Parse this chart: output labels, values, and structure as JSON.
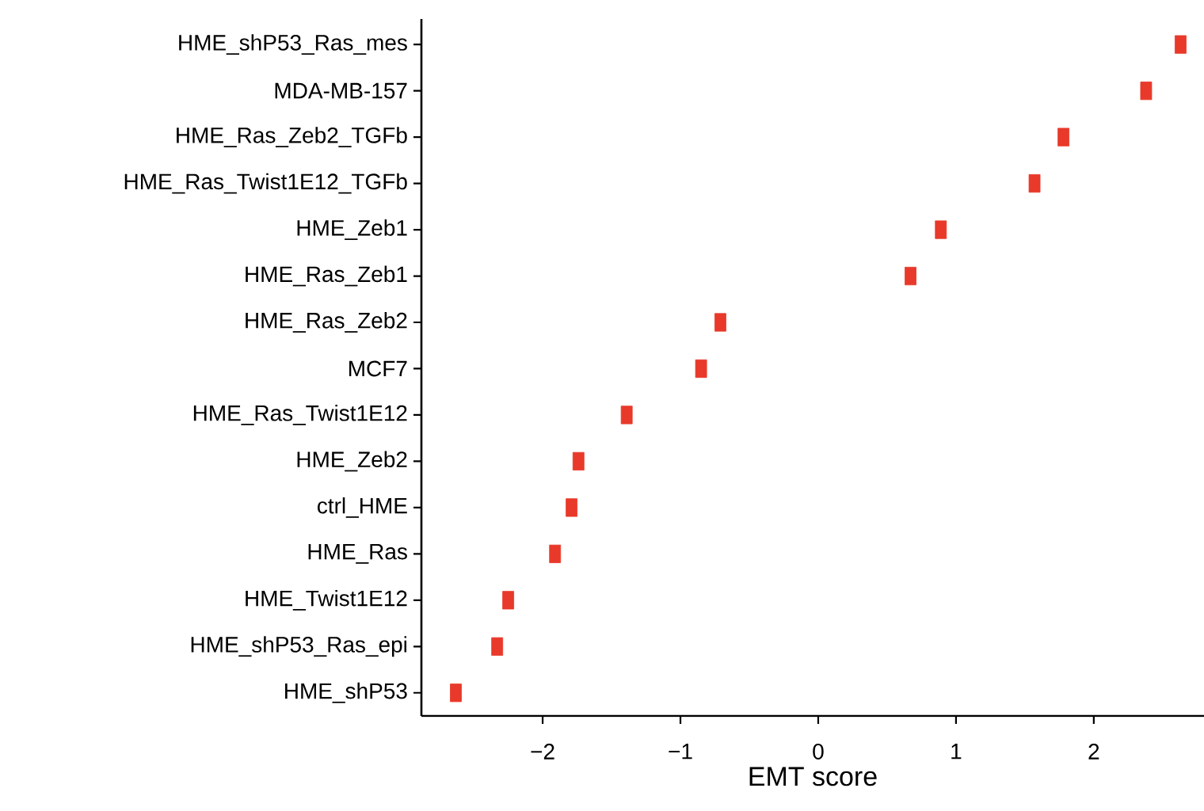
{
  "chart_data": {
    "type": "scatter",
    "xlabel": "EMT score",
    "categories": [
      "HME_shP53_Ras_mes",
      "MDA-MB-157",
      "HME_Ras_Zeb2_TGFb",
      "HME_Ras_Twist1E12_TGFb",
      "HME_Zeb1",
      "HME_Ras_Zeb1",
      "HME_Ras_Zeb2",
      "MCF7",
      "HME_Ras_Twist1E12",
      "HME_Zeb2",
      "ctrl_HME",
      "HME_Ras",
      "HME_Twist1E12",
      "HME_shP53_Ras_epi",
      "HME_shP53"
    ],
    "orientation": "horizontal",
    "values": [
      2.63,
      2.38,
      1.78,
      1.57,
      0.89,
      0.67,
      -0.71,
      -0.85,
      -1.39,
      -1.74,
      -1.79,
      -1.91,
      -2.25,
      -2.33,
      -2.63
    ],
    "color": "#e8392a",
    "marker": "square",
    "xlim": [
      -2.88,
      2.8
    ],
    "xticks": [
      {
        "value": -2,
        "label": "−2"
      },
      {
        "value": -1,
        "label": "−1"
      },
      0,
      1,
      2
    ]
  }
}
